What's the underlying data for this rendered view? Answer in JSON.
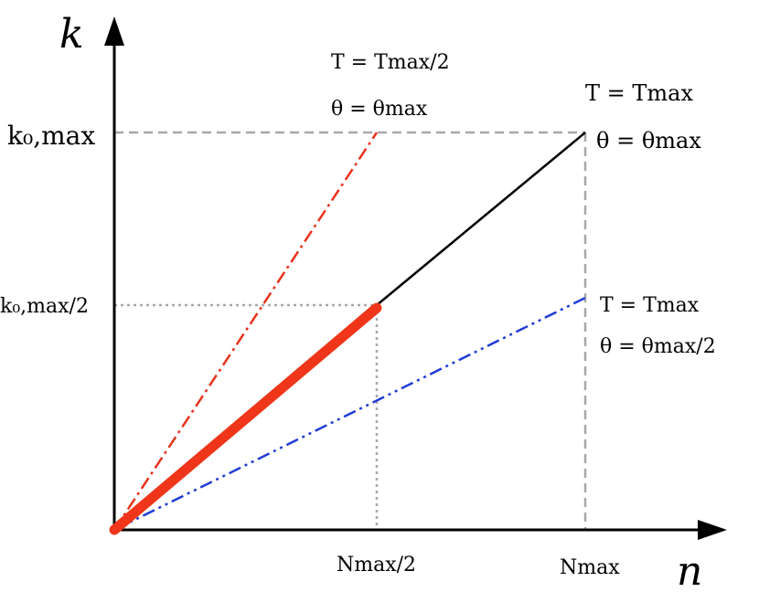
{
  "axes": {
    "x_label": "n",
    "y_label": "k"
  },
  "ticks": {
    "y_top": "k₀,max",
    "y_mid": "k₀,max/2",
    "x_mid": "Nmax/2",
    "x_right": "Nmax"
  },
  "annotations": {
    "red_line": {
      "line1": "T = Tmax/2",
      "line2": "θ = θmax"
    },
    "black_line": {
      "line1": "T = Tmax",
      "line2": "θ = θmax"
    },
    "blue_line": {
      "line1": "T = Tmax",
      "line2": "θ = θmax/2"
    }
  },
  "colors": {
    "axis": "#000000",
    "black_line": "#000000",
    "red_dashdot": "#e8321c",
    "red_thick": "#f0361a",
    "blue_dashdot": "#1f3cd6",
    "guide_gray": "#a8a8a8"
  }
}
